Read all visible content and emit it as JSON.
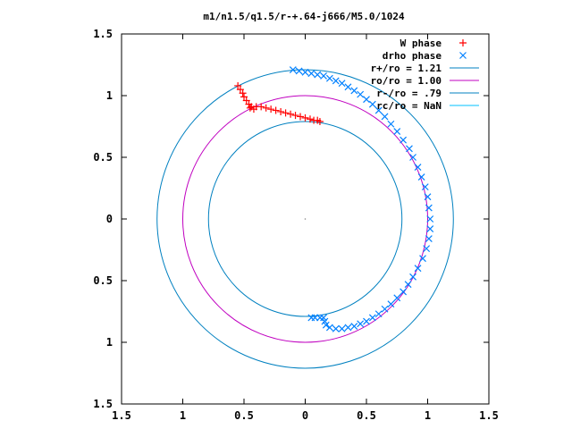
{
  "chart_data": {
    "type": "scatter",
    "title": "m1/n1.5/q1.5/r-+.64-j666/M5.0/1024",
    "xlim": [
      -1.5,
      1.5
    ],
    "ylim": [
      -1.5,
      1.5
    ],
    "x_ticks": [
      -1.5,
      -1,
      -0.5,
      0,
      0.5,
      1,
      1.5
    ],
    "y_ticks": [
      -1.5,
      -1,
      -0.5,
      0,
      0.5,
      1,
      1.5
    ],
    "x_tick_labels": [
      "1.5",
      "1",
      "0.5",
      "0",
      "0.5",
      "1",
      "1.5"
    ],
    "y_tick_labels": [
      "1.5",
      "1",
      "0.5",
      "0",
      "0.5",
      "1",
      "1.5"
    ],
    "grid": false,
    "legend_position": "top-right",
    "circles": [
      {
        "name": "r+/ro = 1.21",
        "radius": 1.21,
        "color": "#0080c0"
      },
      {
        "name": "ro/ro = 1.00",
        "radius": 1.0,
        "color": "#c000c0"
      },
      {
        "name": "r-/ro = .79",
        "radius": 0.79,
        "color": "#0080c0"
      },
      {
        "name": "rc/ro = NaN",
        "radius": null,
        "color": "#00c0ff"
      }
    ],
    "series": [
      {
        "name": "W phase",
        "marker": "+",
        "color": "#ff0000",
        "x": [
          -0.55,
          -0.53,
          -0.51,
          -0.5,
          -0.48,
          -0.46,
          -0.44,
          -0.42,
          -0.45,
          -0.4,
          -0.36,
          -0.32,
          -0.28,
          -0.24,
          -0.2,
          -0.16,
          -0.12,
          -0.08,
          -0.04,
          0.0,
          0.04,
          0.07,
          0.1,
          0.12
        ],
        "y": [
          1.08,
          1.05,
          1.02,
          0.99,
          0.96,
          0.93,
          0.91,
          0.89,
          0.9,
          0.91,
          0.91,
          0.9,
          0.89,
          0.88,
          0.87,
          0.86,
          0.85,
          0.84,
          0.83,
          0.82,
          0.81,
          0.8,
          0.8,
          0.79
        ]
      },
      {
        "name": "drho phase",
        "marker": "x",
        "color": "#0080ff",
        "x": [
          -0.1,
          -0.05,
          0.0,
          0.05,
          0.1,
          0.15,
          0.2,
          0.25,
          0.3,
          0.35,
          0.4,
          0.45,
          0.5,
          0.55,
          0.6,
          0.65,
          0.7,
          0.75,
          0.8,
          0.85,
          0.88,
          0.92,
          0.95,
          0.98,
          1.0,
          1.01,
          1.02,
          1.02,
          1.01,
          0.99,
          0.96,
          0.92,
          0.88,
          0.84,
          0.8,
          0.75,
          0.7,
          0.65,
          0.6,
          0.55,
          0.5,
          0.45,
          0.4,
          0.35,
          0.3,
          0.25,
          0.2,
          0.17,
          0.16,
          0.15,
          0.12,
          0.08,
          0.05
        ],
        "y": [
          1.21,
          1.2,
          1.19,
          1.18,
          1.17,
          1.16,
          1.14,
          1.12,
          1.1,
          1.07,
          1.04,
          1.01,
          0.97,
          0.93,
          0.88,
          0.83,
          0.77,
          0.71,
          0.64,
          0.57,
          0.5,
          0.42,
          0.34,
          0.26,
          0.18,
          0.09,
          0.0,
          -0.08,
          -0.16,
          -0.24,
          -0.32,
          -0.4,
          -0.47,
          -0.53,
          -0.59,
          -0.64,
          -0.69,
          -0.73,
          -0.77,
          -0.8,
          -0.83,
          -0.85,
          -0.87,
          -0.88,
          -0.89,
          -0.89,
          -0.88,
          -0.86,
          -0.83,
          -0.8,
          -0.8,
          -0.8,
          -0.8
        ]
      }
    ]
  }
}
